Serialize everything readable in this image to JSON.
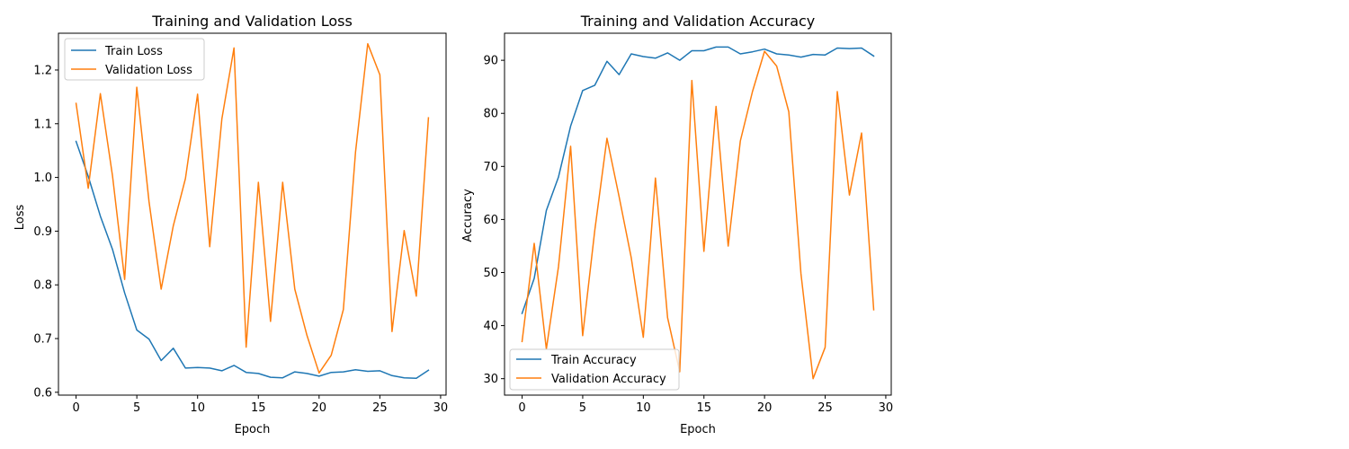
{
  "chart_data": [
    {
      "type": "line",
      "title": "Training and Validation Loss",
      "xlabel": "Epoch",
      "ylabel": "Loss",
      "xlim": [
        -1.45,
        30.45
      ],
      "ylim": [
        0.5947,
        1.2685
      ],
      "xticks": [
        0,
        5,
        10,
        15,
        20,
        25,
        30
      ],
      "yticks": [
        0.6,
        0.7,
        0.8,
        0.9,
        1.0,
        1.1,
        1.2
      ],
      "ytick_labels": [
        "0.6",
        "0.7",
        "0.8",
        "0.9",
        "1.0",
        "1.1",
        "1.2"
      ],
      "grid": false,
      "legend_position": "upper-left",
      "x": [
        0,
        1,
        2,
        3,
        4,
        5,
        6,
        7,
        8,
        9,
        10,
        11,
        12,
        13,
        14,
        15,
        16,
        17,
        18,
        19,
        20,
        21,
        22,
        23,
        24,
        25,
        26,
        27,
        28,
        29
      ],
      "series": [
        {
          "name": "Train Loss",
          "color": "#1f77b4",
          "values": [
            1.067,
            1.002,
            0.928,
            0.866,
            0.785,
            0.716,
            0.699,
            0.659,
            0.682,
            0.645,
            0.646,
            0.645,
            0.64,
            0.65,
            0.637,
            0.635,
            0.628,
            0.627,
            0.638,
            0.635,
            0.63,
            0.637,
            0.638,
            0.642,
            0.639,
            0.64,
            0.631,
            0.627,
            0.626,
            0.641
          ]
        },
        {
          "name": "Validation Loss",
          "color": "#ff7f0e",
          "values": [
            1.138,
            0.98,
            1.156,
            1.003,
            0.81,
            1.168,
            0.955,
            0.792,
            0.91,
            0.998,
            1.155,
            0.871,
            1.109,
            1.241,
            0.684,
            0.991,
            0.732,
            0.991,
            0.792,
            0.706,
            0.636,
            0.669,
            0.754,
            1.047,
            1.249,
            1.191,
            0.713,
            0.901,
            0.779,
            1.111
          ]
        }
      ]
    },
    {
      "type": "line",
      "title": "Training and Validation Accuracy",
      "xlabel": "Epoch",
      "ylabel": "Accuracy",
      "xlim": [
        -1.45,
        30.45
      ],
      "ylim": [
        26.9,
        95.1
      ],
      "xticks": [
        0,
        5,
        10,
        15,
        20,
        25,
        30
      ],
      "yticks": [
        30,
        40,
        50,
        60,
        70,
        80,
        90
      ],
      "ytick_labels": [
        "30",
        "40",
        "50",
        "60",
        "70",
        "80",
        "90"
      ],
      "grid": false,
      "legend_position": "lower-left",
      "x": [
        0,
        1,
        2,
        3,
        4,
        5,
        6,
        7,
        8,
        9,
        10,
        11,
        12,
        13,
        14,
        15,
        16,
        17,
        18,
        19,
        20,
        21,
        22,
        23,
        24,
        25,
        26,
        27,
        28,
        29
      ],
      "series": [
        {
          "name": "Train Accuracy",
          "color": "#1f77b4",
          "values": [
            42.3,
            48.9,
            61.7,
            68.0,
            77.6,
            84.3,
            85.3,
            89.8,
            87.3,
            91.2,
            90.7,
            90.4,
            91.4,
            90.0,
            91.8,
            91.8,
            92.5,
            92.5,
            91.2,
            91.6,
            92.1,
            91.2,
            91.0,
            90.6,
            91.1,
            91.0,
            92.3,
            92.2,
            92.3,
            90.8
          ]
        },
        {
          "name": "Validation Accuracy",
          "color": "#ff7f0e",
          "values": [
            37.0,
            55.5,
            35.6,
            51.1,
            73.8,
            38.1,
            58.0,
            75.3,
            64.3,
            52.8,
            37.8,
            67.8,
            41.5,
            31.3,
            86.2,
            54.0,
            81.3,
            55.0,
            74.8,
            84.1,
            91.7,
            88.9,
            80.3,
            49.8,
            30.0,
            35.9,
            84.1,
            64.6,
            76.3,
            43.0
          ]
        }
      ]
    }
  ]
}
